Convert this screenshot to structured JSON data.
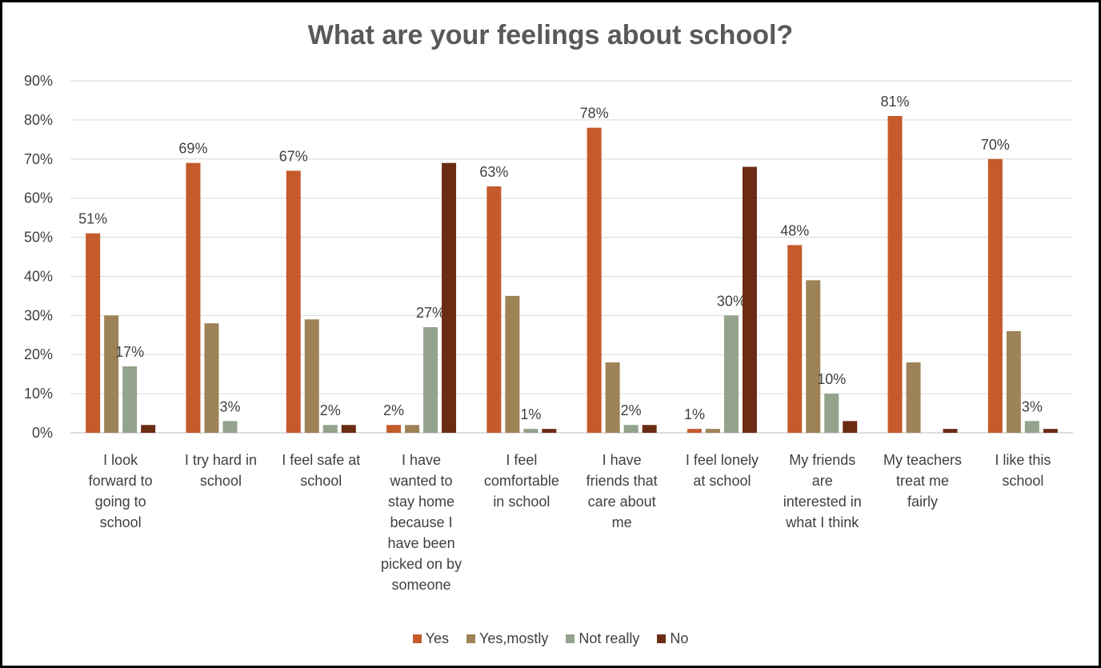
{
  "chart_data": {
    "type": "bar",
    "title": "What are your feelings about school?",
    "xlabel": "",
    "ylabel": "",
    "ylim": [
      0,
      90
    ],
    "yticks": [
      "0%",
      "10%",
      "20%",
      "30%",
      "40%",
      "50%",
      "60%",
      "70%",
      "80%",
      "90%"
    ],
    "grid": true,
    "legend": "bottom",
    "categories": [
      "I look forward to going to school",
      "I try hard in school",
      "I feel safe at school",
      "I have wanted to stay home because I have been picked on by someone",
      "I feel comfortable in school",
      "I have friends that care about me",
      "I feel lonely at school",
      "My friends are interested in what I think",
      "My teachers treat me fairly",
      "I like this school"
    ],
    "category_lines": [
      [
        "I look",
        "forward to",
        "going to",
        "school"
      ],
      [
        "I try hard in",
        "school"
      ],
      [
        "I feel safe at",
        "school"
      ],
      [
        "I have",
        "wanted to",
        "stay home",
        "because I",
        "have been",
        "picked on by",
        "someone"
      ],
      [
        "I feel",
        "comfortable",
        "in school"
      ],
      [
        "I have",
        "friends that",
        "care about",
        "me"
      ],
      [
        "I feel lonely",
        "at school"
      ],
      [
        "My friends",
        "are",
        "interested in",
        "what I think"
      ],
      [
        "My teachers",
        "treat me",
        "fairly"
      ],
      [
        "I like this",
        "school"
      ]
    ],
    "series": [
      {
        "name": "Yes",
        "color": "#C55A2B",
        "values": [
          51,
          69,
          67,
          2,
          63,
          78,
          1,
          48,
          81,
          70
        ],
        "labels": [
          "51%",
          "69%",
          "67%",
          "2%",
          "63%",
          "78%",
          "1%",
          "48%",
          "81%",
          "70%"
        ]
      },
      {
        "name": "Yes,mostly",
        "color": "#9E8357",
        "values": [
          30,
          28,
          29,
          2,
          35,
          18,
          1,
          39,
          18,
          26
        ],
        "labels": [
          "",
          "",
          "",
          "",
          "",
          "",
          "",
          "",
          "",
          ""
        ]
      },
      {
        "name": "Not really",
        "color": "#94A38C",
        "values": [
          17,
          3,
          2,
          27,
          1,
          2,
          30,
          10,
          0,
          3
        ],
        "labels": [
          "17%",
          "3%",
          "2%",
          "27%",
          "1%",
          "2%",
          "30%",
          "10%",
          "",
          "3%"
        ]
      },
      {
        "name": "No",
        "color": "#6B2C14",
        "values": [
          2,
          0,
          2,
          69,
          1,
          2,
          68,
          3,
          1,
          1
        ],
        "labels": [
          "",
          "",
          "",
          "",
          "",
          "",
          "",
          "",
          "",
          ""
        ]
      }
    ]
  }
}
